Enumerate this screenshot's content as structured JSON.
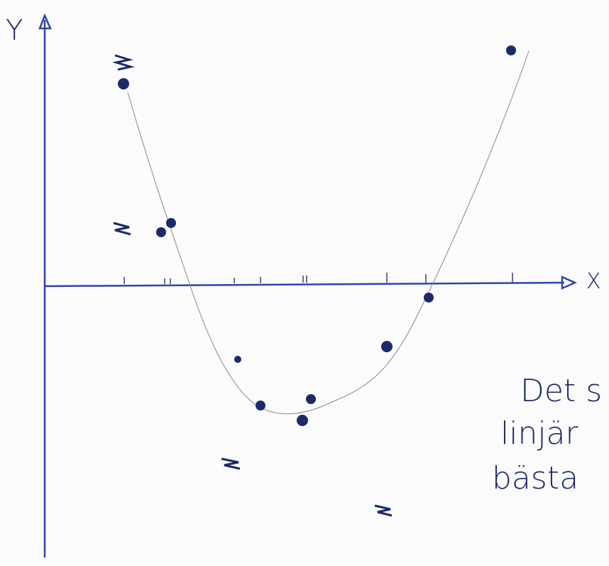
{
  "axes": {
    "y_label": "Y",
    "x_label": "X"
  },
  "notes": {
    "lines": [
      "Det s",
      "linjär",
      "bästa"
    ]
  }
}
